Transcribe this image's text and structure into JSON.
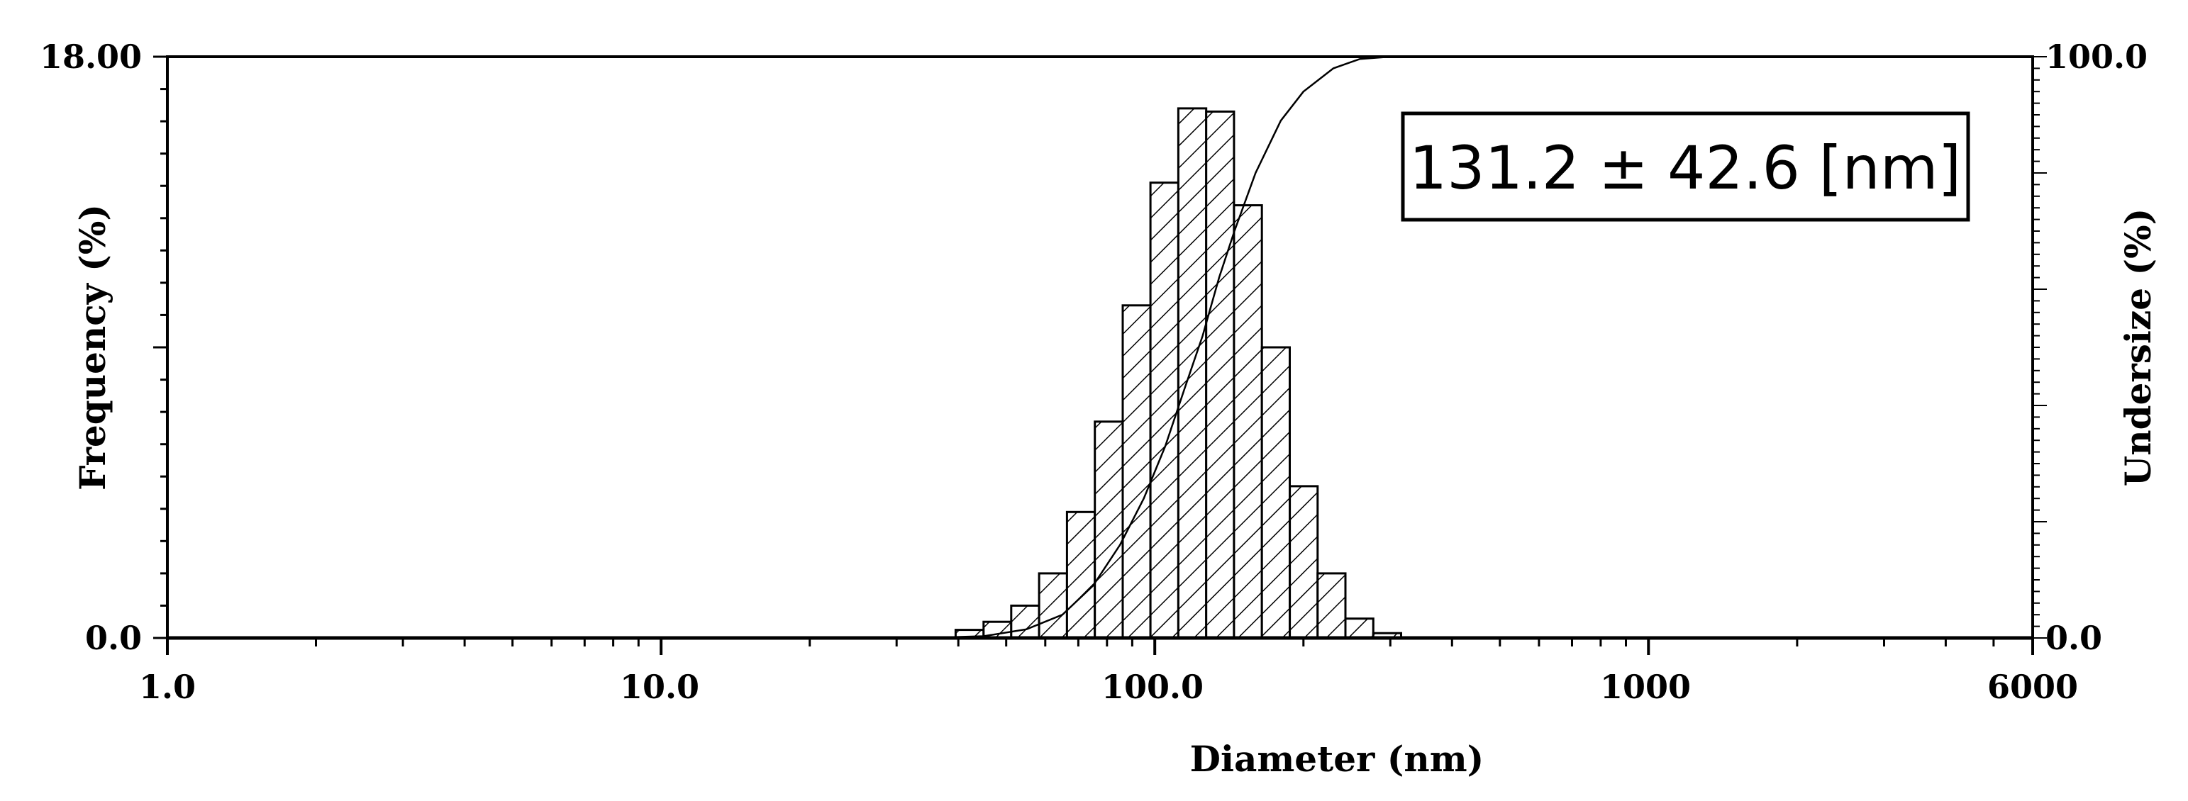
{
  "chart_data": {
    "type": "bar",
    "title": "",
    "xlabel": "Diameter (nm)",
    "ylabel": "Frequency (%)",
    "y2label": "Undersize (%)",
    "x_scale": "log",
    "xlim": [
      1.0,
      6000
    ],
    "ylim": [
      0,
      18
    ],
    "y2lim": [
      0,
      100
    ],
    "x_tick_labels": [
      {
        "value": 1,
        "label": "1.0"
      },
      {
        "value": 10,
        "label": "10.0"
      },
      {
        "value": 100,
        "label": "100.0"
      },
      {
        "value": 1000,
        "label": "1000"
      },
      {
        "value": 6000,
        "label": "6000"
      }
    ],
    "y_tick_labels": [
      {
        "value": 0,
        "label": "0.0"
      },
      {
        "value": 18,
        "label": "18.00"
      }
    ],
    "y2_tick_labels": [
      {
        "value": 0,
        "label": "0.0"
      },
      {
        "value": 100,
        "label": "100.0"
      }
    ],
    "grid": false,
    "bar_fill": "diagonal hatching",
    "bars": [
      {
        "left": 39.5,
        "right": 45.0,
        "value": 0.25
      },
      {
        "left": 45.0,
        "right": 51.2,
        "value": 0.5
      },
      {
        "left": 51.2,
        "right": 58.3,
        "value": 1.0
      },
      {
        "left": 58.3,
        "right": 66.4,
        "value": 2.0
      },
      {
        "left": 66.4,
        "right": 75.6,
        "value": 3.9
      },
      {
        "left": 75.6,
        "right": 86.1,
        "value": 6.7
      },
      {
        "left": 86.1,
        "right": 98.0,
        "value": 10.3
      },
      {
        "left": 98.0,
        "right": 111.6,
        "value": 14.1
      },
      {
        "left": 111.6,
        "right": 127.1,
        "value": 16.4
      },
      {
        "left": 127.1,
        "right": 144.7,
        "value": 16.3
      },
      {
        "left": 144.7,
        "right": 164.8,
        "value": 13.4
      },
      {
        "left": 164.8,
        "right": 187.7,
        "value": 9.0
      },
      {
        "left": 187.7,
        "right": 213.7,
        "value": 4.7
      },
      {
        "left": 213.7,
        "right": 243.3,
        "value": 2.0
      },
      {
        "left": 243.3,
        "right": 277.1,
        "value": 0.6
      },
      {
        "left": 277.1,
        "right": 315.5,
        "value": 0.15
      }
    ],
    "cumulative_undersize": {
      "x": [
        34,
        45,
        55,
        65,
        75,
        85,
        95,
        105,
        115,
        125,
        135,
        145,
        160,
        180,
        200,
        230,
        260,
        300
      ],
      "y": [
        0,
        0.3,
        1.5,
        4,
        9,
        16,
        24,
        33,
        43,
        52,
        62,
        70,
        80,
        89,
        94,
        98,
        99.6,
        100
      ]
    },
    "annotation": "131.2 ± 42.6 [nm]"
  }
}
